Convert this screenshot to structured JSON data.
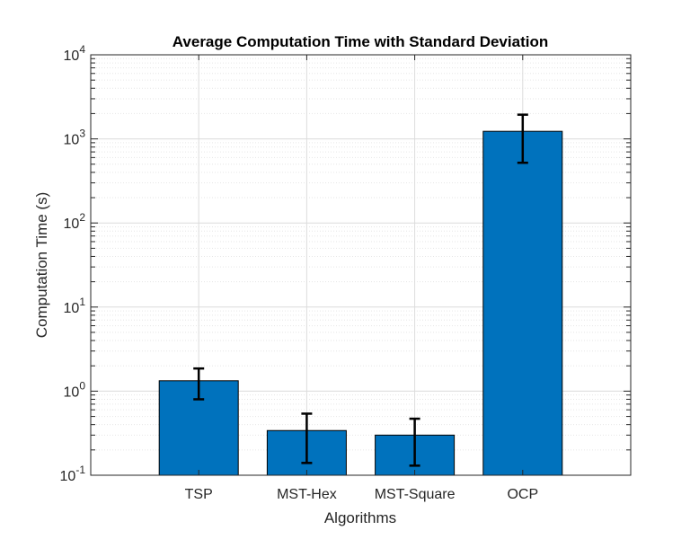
{
  "chart_data": {
    "type": "bar",
    "title": "Average Computation Time with Standard Deviation",
    "xlabel": "Algorithms",
    "ylabel": "Computation Time (s)",
    "yscale": "log",
    "ylim": [
      0.1,
      10000
    ],
    "grid": true,
    "minor_grid": true,
    "categories": [
      "TSP",
      "MST-Hex",
      "MST-Square",
      "OCP"
    ],
    "series": [
      {
        "name": "Average Computation Time",
        "values": [
          1.33,
          0.34,
          0.3,
          1230
        ],
        "error_low": [
          0.8,
          0.14,
          0.13,
          520
        ],
        "error_high": [
          1.86,
          0.54,
          0.47,
          1940
        ]
      }
    ],
    "y_ticks": [
      {
        "base": "10",
        "exp": "-1"
      },
      {
        "base": "10",
        "exp": "0"
      },
      {
        "base": "10",
        "exp": "1"
      },
      {
        "base": "10",
        "exp": "2"
      },
      {
        "base": "10",
        "exp": "3"
      },
      {
        "base": "10",
        "exp": "4"
      }
    ],
    "colors": {
      "bar": "#0072BD",
      "bar_edge": "#000000",
      "error_bar": "#000000",
      "grid_major": "#dcdcdc",
      "grid_minor": "#e6e6e6",
      "axis": "#262626"
    }
  }
}
